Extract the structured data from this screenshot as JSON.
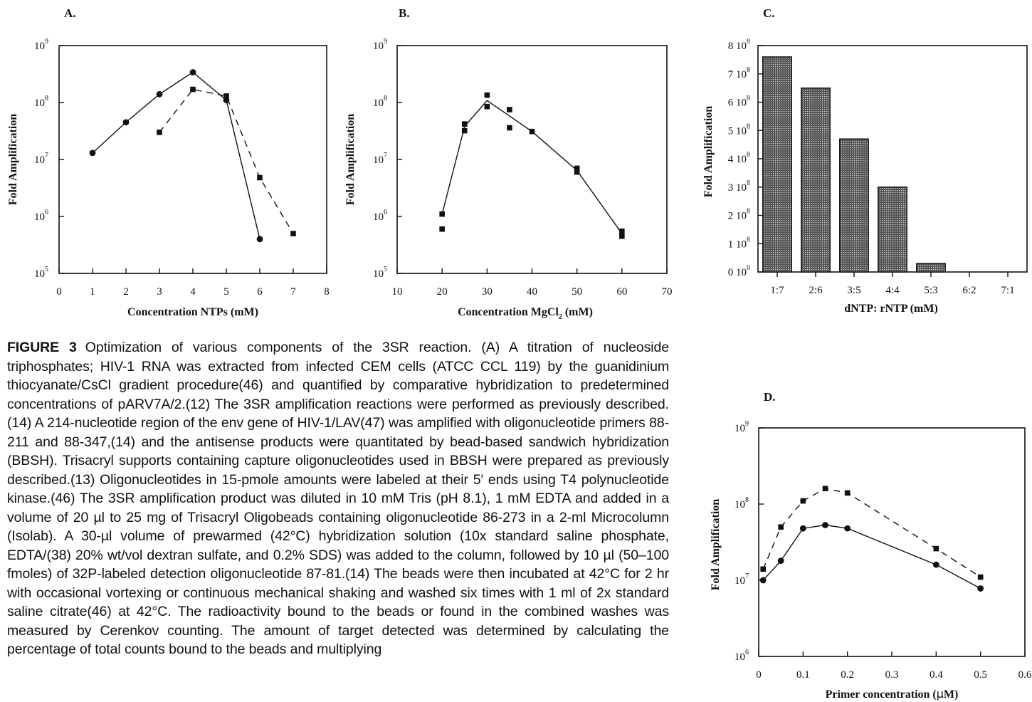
{
  "figure": {
    "label": "FIGURE 3",
    "caption": "Optimization of various components of the 3SR reaction. (A) A titration of nucleoside triphosphates; HIV-1 RNA was extracted from infected CEM cells (ATCC CCL 119) by the guanidinium thiocyanate/CsCl gradient procedure(46) and quantified by comparative hybridization to predetermined concentrations of pARV7A/2.(12) The 3SR amplification reactions were performed as previously described.(14) A 214-nucleotide region of the env gene of HIV-1/LAV(47) was amplified with oligonucleotide primers 88-211 and 88-347,(14) and the antisense products were quantitated by bead-based sandwich hybridization (BBSH). Trisacryl supports containing capture oligonucleotides used in BBSH were prepared as previously described.(13) Oligonucleotides in 15-pmole amounts were labeled at their 5′ ends using T4 polynucleotide kinase.(46) The 3SR amplification product was diluted in 10 mM Tris (pH 8.1), 1 mM EDTA and added in a volume of 20 µl to 25 mg of Trisacryl Oligobeads containing oligonucleotide 86-273 in a 2-ml Microcolumn (Isolab). A 30-µl volume of prewarmed (42°C) hybridization solution (10x standard saline phosphate, EDTA/(38) 20% wt/vol dextran sulfate, and 0.2% SDS) was added to the column, followed by 10 µl (50–100 fmoles) of 32P-labeled detection oligonucleotide 87-81.(14) The beads were then incubated at 42°C for 2 hr with occasional vortexing or continuous mechanical shaking and washed six times with 1 ml of 2x standard saline citrate(46) at 42°C. The radioactivity bound to the beads or found in the combined washes was measured by Cerenkov counting. The amount of target detected was determined by calculating the percentage of total counts bound to the beads and multiplying"
  },
  "chart_data": [
    {
      "panel": "A.",
      "type": "line",
      "xlabel": "Concentration NTPs (mM)",
      "ylabel": "Fold Amplification",
      "x_ticks": [
        "0",
        "1",
        "2",
        "3",
        "4",
        "5",
        "6",
        "7",
        "8"
      ],
      "y_ticks": [
        {
          "base": "10",
          "exp": "9",
          "value": 1000000000.0
        },
        {
          "base": "10",
          "exp": "8",
          "value": 100000000.0
        },
        {
          "base": "10",
          "exp": "7",
          "value": 10000000.0
        },
        {
          "base": "10",
          "exp": "6",
          "value": 1000000.0
        },
        {
          "base": "10",
          "exp": "5",
          "value": 100000.0
        }
      ],
      "xlim": [
        0,
        8
      ],
      "ylim": [
        100000,
        1000000000
      ],
      "yscale": "log",
      "series": [
        {
          "marker": "circle",
          "line": "solid",
          "points": [
            [
              1,
              13000000
            ],
            [
              2,
              45000000
            ],
            [
              3,
              140000000
            ],
            [
              4,
              340000000
            ],
            [
              5,
              110000000
            ],
            [
              6,
              400000
            ]
          ]
        },
        {
          "marker": "square",
          "line": "dashed",
          "points": [
            [
              3,
              30000000
            ],
            [
              4,
              170000000
            ],
            [
              5,
              130000000
            ],
            [
              6,
              4800000
            ],
            [
              7,
              500000
            ]
          ]
        }
      ]
    },
    {
      "panel": "B.",
      "type": "scatter",
      "xlabel": "Concentration  MgCl",
      "xlabel_sub": "2",
      "xlabel_unit": " (mM)",
      "ylabel": "Fold Amplification",
      "x_ticks": [
        "10",
        "20",
        "30",
        "40",
        "50",
        "60",
        "70"
      ],
      "y_ticks": [
        {
          "base": "10",
          "exp": "9",
          "value": 1000000000.0
        },
        {
          "base": "10",
          "exp": "8",
          "value": 100000000.0
        },
        {
          "base": "10",
          "exp": "7",
          "value": 10000000.0
        },
        {
          "base": "10",
          "exp": "6",
          "value": 1000000.0
        },
        {
          "base": "10",
          "exp": "5",
          "value": 100000.0
        }
      ],
      "xlim": [
        10,
        70
      ],
      "ylim": [
        100000,
        1000000000
      ],
      "yscale": "log",
      "points": [
        [
          20,
          1100000
        ],
        [
          20,
          600000
        ],
        [
          25,
          42000000
        ],
        [
          25,
          32000000
        ],
        [
          30,
          135000000
        ],
        [
          30,
          85000000
        ],
        [
          35,
          75000000
        ],
        [
          35,
          36000000
        ],
        [
          40,
          31000000
        ],
        [
          50,
          7000000
        ],
        [
          50,
          6000000
        ],
        [
          60,
          550000
        ],
        [
          60,
          450000
        ]
      ],
      "curve": [
        [
          20,
          1100000
        ],
        [
          25,
          38000000
        ],
        [
          30,
          108000000
        ],
        [
          40,
          31000000
        ],
        [
          50,
          6400000
        ],
        [
          60,
          500000
        ]
      ]
    },
    {
      "panel": "C.",
      "type": "bar",
      "xlabel": "dNTP: rNTP (mM)",
      "ylabel": "Fold Amplification",
      "categories": [
        "1:7",
        "2:6",
        "3:5",
        "4:4",
        "5:3",
        "6:2",
        "7:1"
      ],
      "values": [
        760000000,
        650000000,
        470000000,
        300000000,
        30000000,
        0,
        0
      ],
      "y_ticks": [
        {
          "text": "8 10",
          "exp": "8",
          "value": 800000000
        },
        {
          "text": "7 10",
          "exp": "8",
          "value": 700000000
        },
        {
          "text": "6 10",
          "exp": "8",
          "value": 600000000
        },
        {
          "text": "5 10",
          "exp": "8",
          "value": 500000000
        },
        {
          "text": "4 10",
          "exp": "8",
          "value": 400000000
        },
        {
          "text": "3 10",
          "exp": "8",
          "value": 300000000
        },
        {
          "text": "2 10",
          "exp": "8",
          "value": 200000000
        },
        {
          "text": "1 10",
          "exp": "8",
          "value": 100000000
        },
        {
          "text": "0 10",
          "exp": "0",
          "value": 0
        }
      ],
      "ylim": [
        0,
        800000000
      ],
      "colors": {
        "bar": "#555555"
      }
    },
    {
      "panel": "D.",
      "type": "line",
      "xlabel": "Primer concentration (",
      "xlabel_mu": "µ",
      "xlabel_unit": "M)",
      "ylabel": "Fold Amplification",
      "x_ticks": [
        "0",
        "0.1",
        "0.2",
        "0.3",
        "0.4",
        "0.5",
        "0.6"
      ],
      "x_tick_values": [
        0,
        0.1,
        0.2,
        0.3,
        0.4,
        0.5,
        0.6
      ],
      "y_ticks": [
        {
          "base": "10",
          "exp": "9",
          "value": 1000000000.0
        },
        {
          "base": "10",
          "exp": "8",
          "value": 100000000.0
        },
        {
          "base": "10",
          "exp": "7",
          "value": 10000000.0
        },
        {
          "base": "10",
          "exp": "6",
          "value": 1000000.0
        }
      ],
      "xlim": [
        0,
        0.6
      ],
      "ylim": [
        1000000,
        1000000000
      ],
      "yscale": "log",
      "series": [
        {
          "marker": "circle",
          "line": "solid",
          "points": [
            [
              0.01,
              10000000
            ],
            [
              0.05,
              18000000
            ],
            [
              0.1,
              48000000
            ],
            [
              0.15,
              53000000
            ],
            [
              0.2,
              48000000
            ],
            [
              0.4,
              16000000
            ],
            [
              0.5,
              7800000
            ]
          ]
        },
        {
          "marker": "square",
          "line": "dashed",
          "points": [
            [
              0.01,
              14000000
            ],
            [
              0.05,
              50000000
            ],
            [
              0.1,
              110000000
            ],
            [
              0.15,
              160000000
            ],
            [
              0.2,
              140000000
            ],
            [
              0.4,
              26000000
            ],
            [
              0.5,
              11000000
            ]
          ]
        }
      ]
    }
  ]
}
